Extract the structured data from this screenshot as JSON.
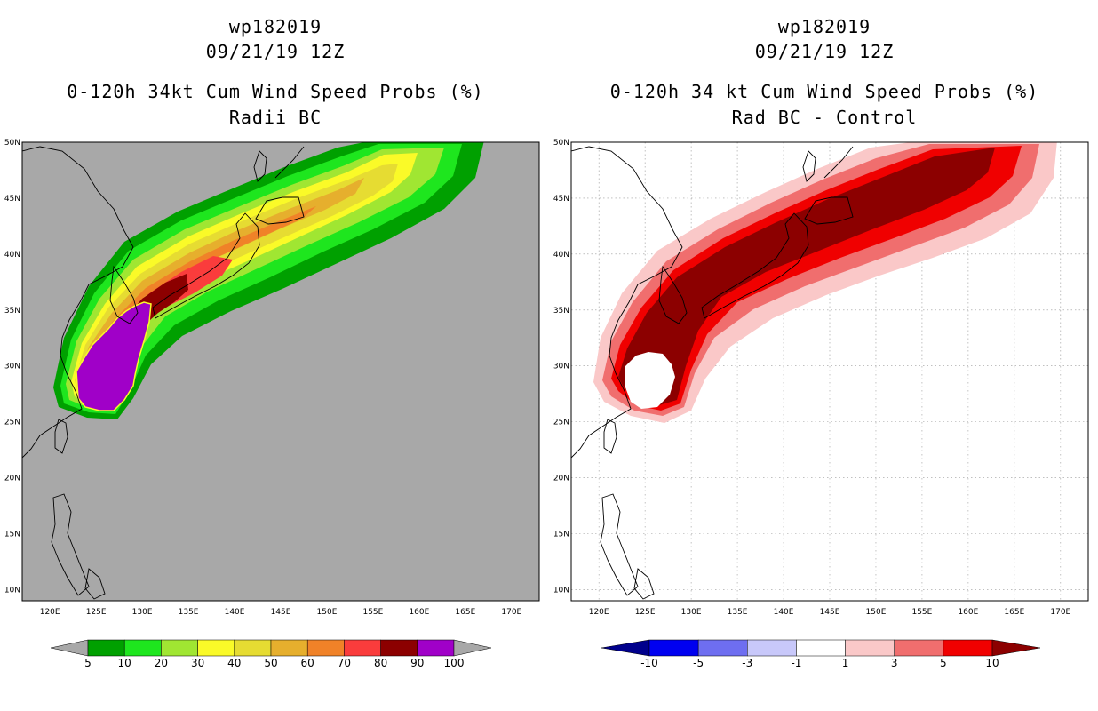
{
  "left_panel": {
    "storm_id": "wp182019",
    "datetime": "09/21/19 12Z",
    "title": "0-120h 34kt Cum Wind Speed Probs (%)",
    "subtitle": "Radii BC",
    "background_color": "#a8a8a8",
    "colorbar": {
      "labels": [
        "5",
        "10",
        "20",
        "30",
        "40",
        "50",
        "60",
        "70",
        "80",
        "90",
        "100"
      ],
      "colors": [
        "#a8a8a8",
        "#00a000",
        "#1ee61e",
        "#a0e632",
        "#fafa28",
        "#e6dc32",
        "#e6af2d",
        "#f08228",
        "#fa3c3c",
        "#8c0000",
        "#a000c8",
        "#a8a8a8"
      ]
    }
  },
  "right_panel": {
    "storm_id": "wp182019",
    "datetime": "09/21/19 12Z",
    "title": "0-120h 34 kt Cum Wind Speed Probs (%)",
    "subtitle": "Rad BC - Control",
    "background_color": "#ffffff",
    "colorbar": {
      "labels": [
        "-10",
        "-5",
        "-3",
        "-1",
        "1",
        "3",
        "5",
        "10"
      ],
      "colors": [
        "#00008c",
        "#0000f0",
        "#6e6ef0",
        "#c8c8fa",
        "#ffffff",
        "#fac8c8",
        "#f06e6e",
        "#f00000",
        "#8c0000"
      ]
    }
  },
  "map_axes": {
    "lon_labels": [
      "120E",
      "125E",
      "130E",
      "135E",
      "140E",
      "145E",
      "150E",
      "155E",
      "160E",
      "165E",
      "170E"
    ],
    "lat_labels": [
      "10N",
      "15N",
      "20N",
      "25N",
      "30N",
      "35N",
      "40N",
      "45N",
      "50N"
    ],
    "lon_range": [
      117,
      173
    ],
    "lat_range": [
      9,
      50
    ]
  }
}
